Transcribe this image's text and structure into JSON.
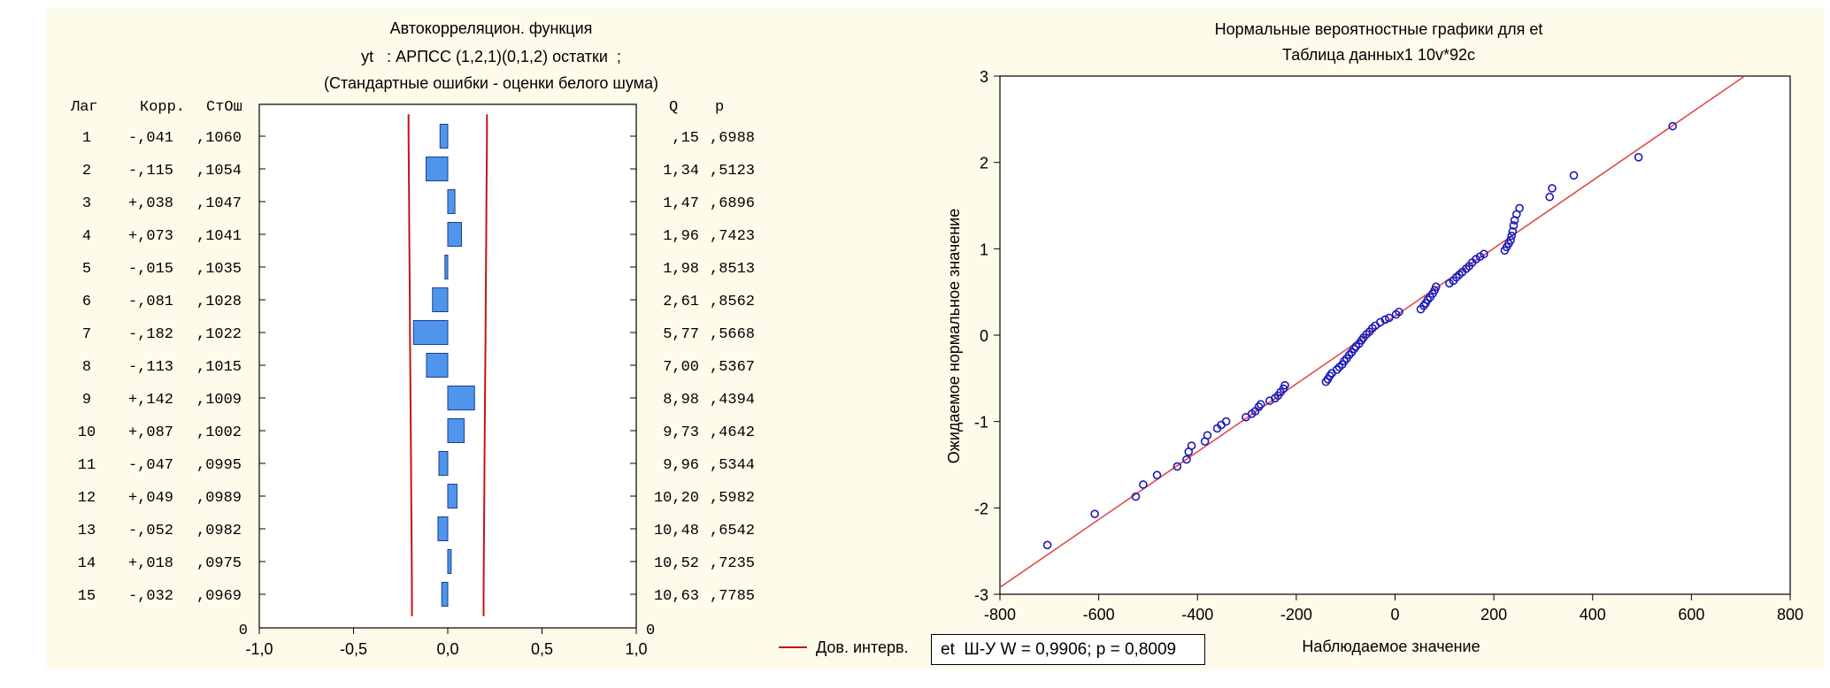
{
  "colors": {
    "panel_bg": "#fdfbe9",
    "bar_fill": "#4f95ec",
    "bar_edge": "#1a3f8f",
    "ci_line": "#c01616",
    "fit_line": "#e24a4a",
    "marker": "#1a1ab8"
  },
  "chart_data": [
    {
      "type": "bar",
      "orientation": "horizontal",
      "title": "Автокорреляцион. функция",
      "subtitle": "yt   : АРПСС (1,2,1)(0,1,2) остатки  ;",
      "subtitle2": "(Стандартные ошибки - оценки белого шума)",
      "column_headers": {
        "lag": "Лаг",
        "corr": "Корр.",
        "se": "СтОш",
        "q": "Q",
        "p": "p"
      },
      "lags": [
        "1",
        "2",
        "3",
        "4",
        "5",
        "6",
        "7",
        "8",
        "9",
        "10",
        "11",
        "12",
        "13",
        "14",
        "15"
      ],
      "values": [
        -0.041,
        -0.115,
        0.038,
        0.073,
        -0.015,
        -0.081,
        -0.182,
        -0.113,
        0.142,
        0.087,
        -0.047,
        0.049,
        -0.052,
        0.018,
        -0.032
      ],
      "corr_labels": [
        "-,041",
        "-,115",
        "+,038",
        "+,073",
        "-,015",
        "-,081",
        "-,182",
        "-,113",
        "+,142",
        "+,087",
        "-,047",
        "+,049",
        "-,052",
        "+,018",
        "-,032"
      ],
      "se_labels": [
        ",1060",
        ",1054",
        ",1047",
        ",1041",
        ",1035",
        ",1028",
        ",1022",
        ",1015",
        ",1009",
        ",1002",
        ",0995",
        ",0989",
        ",0982",
        ",0975",
        ",0969"
      ],
      "se_values": [
        0.106,
        0.1054,
        0.1047,
        0.1041,
        0.1035,
        0.1028,
        0.1022,
        0.1015,
        0.1009,
        0.1002,
        0.0995,
        0.0989,
        0.0982,
        0.0975,
        0.0969
      ],
      "q_labels": [
        ",15",
        "1,34",
        "1,47",
        "1,96",
        "1,98",
        "2,61",
        "5,77",
        "7,00",
        "8,98",
        "9,73",
        "9,96",
        "10,20",
        "10,48",
        "10,52",
        "10,63"
      ],
      "p_labels": [
        ",6988",
        ",5123",
        ",6896",
        ",7423",
        ",8513",
        ",8562",
        ",5668",
        ",5367",
        ",4394",
        ",4642",
        ",5344",
        ",5982",
        ",6542",
        ",7235",
        ",7785"
      ],
      "xlim": [
        -1.0,
        1.0
      ],
      "x_ticks": [
        "-1,0",
        "-0,5",
        "0,0",
        "0,5",
        "1,0"
      ],
      "x_tick_values": [
        -1.0,
        -0.5,
        0.0,
        0.5,
        1.0
      ],
      "zero_label_left": "0",
      "zero_label_right": "0",
      "legend": {
        "label": "Дов. интерв.",
        "placement": "bottom-right"
      }
    },
    {
      "type": "scatter",
      "title": "Нормальные вероятностные графики для et",
      "subtitle": "Таблица данных1 10v*92c",
      "xlabel": "Наблюдаемое значение",
      "ylabel": "Ожидаемое нормальное значение",
      "xlim": [
        -800,
        800
      ],
      "ylim": [
        -3,
        3
      ],
      "x_ticks": [
        "-800",
        "-600",
        "-400",
        "-200",
        "0",
        "200",
        "400",
        "600",
        "800"
      ],
      "x_tick_values": [
        -800,
        -600,
        -400,
        -200,
        0,
        200,
        400,
        600,
        800
      ],
      "y_ticks": [
        "-3",
        "-2",
        "-1",
        "0",
        "1",
        "2",
        "3"
      ],
      "y_tick_values": [
        -3,
        -2,
        -1,
        0,
        1,
        2,
        3
      ],
      "fit_line": {
        "x": [
          -800,
          708
        ],
        "y": [
          -2.92,
          3.0
        ]
      },
      "points": [
        [
          -704,
          -2.43
        ],
        [
          -608,
          -2.07
        ],
        [
          -525,
          -1.87
        ],
        [
          -510,
          -1.73
        ],
        [
          -482,
          -1.62
        ],
        [
          -441,
          -1.52
        ],
        [
          -422,
          -1.44
        ],
        [
          -418,
          -1.35
        ],
        [
          -412,
          -1.28
        ],
        [
          -385,
          -1.23
        ],
        [
          -380,
          -1.16
        ],
        [
          -360,
          -1.08
        ],
        [
          -352,
          -1.04
        ],
        [
          -342,
          -1.0
        ],
        [
          -302,
          -0.95
        ],
        [
          -290,
          -0.91
        ],
        [
          -283,
          -0.88
        ],
        [
          -276,
          -0.83
        ],
        [
          -272,
          -0.8
        ],
        [
          -254,
          -0.76
        ],
        [
          -243,
          -0.73
        ],
        [
          -237,
          -0.7
        ],
        [
          -232,
          -0.66
        ],
        [
          -226,
          -0.62
        ],
        [
          -223,
          -0.58
        ],
        [
          -140,
          -0.54
        ],
        [
          -136,
          -0.51
        ],
        [
          -132,
          -0.47
        ],
        [
          -128,
          -0.44
        ],
        [
          -118,
          -0.4
        ],
        [
          -113,
          -0.37
        ],
        [
          -107,
          -0.34
        ],
        [
          -103,
          -0.3
        ],
        [
          -98,
          -0.27
        ],
        [
          -93,
          -0.23
        ],
        [
          -88,
          -0.2
        ],
        [
          -83,
          -0.16
        ],
        [
          -79,
          -0.13
        ],
        [
          -73,
          -0.1
        ],
        [
          -68,
          -0.06
        ],
        [
          -64,
          -0.03
        ],
        [
          -58,
          0.01
        ],
        [
          -52,
          0.04
        ],
        [
          -46,
          0.08
        ],
        [
          -40,
          0.11
        ],
        [
          -30,
          0.15
        ],
        [
          -20,
          0.18
        ],
        [
          -12,
          0.2
        ],
        [
          2,
          0.24
        ],
        [
          8,
          0.27
        ],
        [
          52,
          0.3
        ],
        [
          58,
          0.34
        ],
        [
          62,
          0.37
        ],
        [
          66,
          0.41
        ],
        [
          71,
          0.44
        ],
        [
          76,
          0.48
        ],
        [
          80,
          0.52
        ],
        [
          83,
          0.56
        ],
        [
          110,
          0.6
        ],
        [
          118,
          0.63
        ],
        [
          124,
          0.67
        ],
        [
          130,
          0.7
        ],
        [
          136,
          0.73
        ],
        [
          144,
          0.77
        ],
        [
          150,
          0.8
        ],
        [
          156,
          0.84
        ],
        [
          164,
          0.88
        ],
        [
          172,
          0.91
        ],
        [
          180,
          0.94
        ],
        [
          222,
          0.98
        ],
        [
          226,
          1.02
        ],
        [
          230,
          1.06
        ],
        [
          234,
          1.1
        ],
        [
          236,
          1.15
        ],
        [
          238,
          1.2
        ],
        [
          240,
          1.27
        ],
        [
          242,
          1.33
        ],
        [
          246,
          1.4
        ],
        [
          252,
          1.47
        ],
        [
          313,
          1.6
        ],
        [
          318,
          1.7
        ],
        [
          362,
          1.85
        ],
        [
          493,
          2.06
        ],
        [
          562,
          2.42
        ]
      ],
      "stats_box": {
        "label": "et",
        "text": "Ш-У W = 0,9906; p = 0,8009"
      }
    }
  ]
}
